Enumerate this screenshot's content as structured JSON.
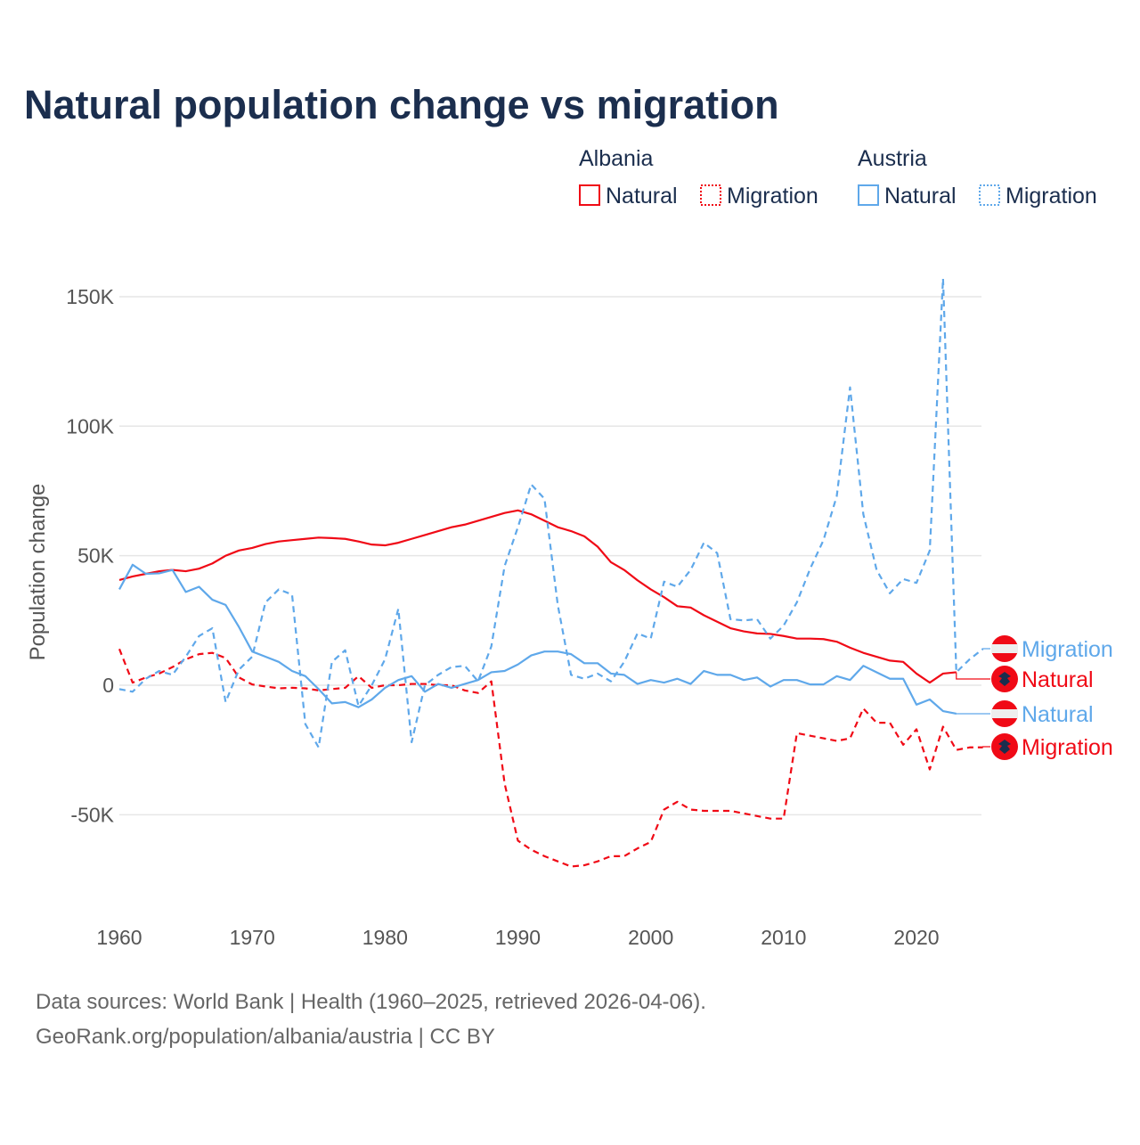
{
  "chart_data": {
    "type": "line",
    "title": "Natural population change vs migration",
    "ylabel": "Population change",
    "xlabel": "",
    "xlim": [
      1960,
      2025
    ],
    "ylim": [
      -80000,
      160000
    ],
    "x_ticks": [
      1960,
      1970,
      1980,
      1990,
      2000,
      2010,
      2020
    ],
    "x_tick_labels": [
      "1960",
      "1970",
      "1980",
      "1990",
      "2000",
      "2010",
      "2020"
    ],
    "y_ticks": [
      -50000,
      0,
      50000,
      100000,
      150000
    ],
    "y_tick_labels": [
      "-50K",
      "0",
      "50K",
      "100K",
      "150K"
    ],
    "grid": true,
    "legend": {
      "placement": "top-right",
      "groups": [
        {
          "name": "Albania",
          "entries": [
            "Natural",
            "Migration"
          ]
        },
        {
          "name": "Austria",
          "entries": [
            "Natural",
            "Migration"
          ]
        }
      ]
    },
    "x_start": 1960,
    "series": [
      {
        "name": "Albania Natural",
        "country": "Albania",
        "kind": "Natural",
        "color": "#f00a16",
        "dash": false,
        "end_label": "Natural",
        "values": [
          40.6,
          42,
          43,
          44,
          44.5,
          44,
          45,
          47,
          50,
          52,
          53,
          54.5,
          55.5,
          56,
          56.5,
          57,
          56.8,
          56.5,
          55.5,
          54.3,
          54,
          55,
          56.5,
          58,
          59.5,
          61,
          62,
          63.5,
          65,
          66.5,
          67.5,
          66,
          63.5,
          61,
          59.5,
          57.5,
          53.5,
          47.5,
          44.5,
          40.5,
          37,
          34,
          30.5,
          30,
          27,
          24.5,
          22,
          20.8,
          20,
          19.8,
          19,
          18,
          18,
          17.8,
          16.8,
          14.5,
          12.5,
          11,
          9.5,
          9,
          4.5,
          1,
          4.5,
          5
        ]
      },
      {
        "name": "Albania Migration",
        "country": "Albania",
        "kind": "Migration",
        "color": "#f00a16",
        "dash": true,
        "end_label": "Migration",
        "values": [
          14,
          1,
          3,
          4.5,
          7,
          10,
          12,
          12.5,
          10.5,
          3,
          0.3,
          -0.5,
          -1.2,
          -1,
          -1.2,
          -2,
          -1.5,
          -1,
          3.5,
          -1,
          0,
          0,
          0.5,
          0.5,
          0,
          0,
          -2,
          -3,
          1.5,
          -38,
          -60,
          -63.5,
          -66,
          -68,
          -70,
          -69.5,
          -68,
          -66,
          -66,
          -63,
          -60.5,
          -48,
          -45,
          -48,
          -48.5,
          -48.5,
          -48.5,
          -49.5,
          -50.5,
          -51.5,
          -51.5,
          -18.5,
          -19.5,
          -20.5,
          -21.5,
          -20.5,
          -9,
          -14.5,
          -14.5,
          -23,
          -17,
          -32.5,
          -16,
          -25,
          -24,
          -24
        ]
      },
      {
        "name": "Austria Natural",
        "country": "Austria",
        "kind": "Natural",
        "color": "#5fa8ea",
        "dash": false,
        "end_label": "Natural",
        "values": [
          37,
          46.5,
          43,
          43.2,
          44.5,
          36,
          38,
          33,
          31,
          22.5,
          13,
          11,
          9,
          5.5,
          3.5,
          -1.5,
          -7,
          -6.5,
          -8.5,
          -5.5,
          -1,
          2,
          3.5,
          -2.5,
          0.5,
          -1,
          0.5,
          2,
          5,
          5.5,
          8,
          11.5,
          13,
          13,
          12,
          8.5,
          8.5,
          4.5,
          4,
          0.5,
          2,
          1,
          2.5,
          0.5,
          5.5,
          4,
          4,
          2,
          3,
          -0.5,
          2,
          2,
          0.3,
          0.3,
          3.5,
          2,
          7.5,
          5,
          2.5,
          2.5,
          -7.5,
          -5.5,
          -10,
          -11
        ]
      },
      {
        "name": "Austria Migration",
        "country": "Austria",
        "kind": "Migration",
        "color": "#5fa8ea",
        "dash": true,
        "end_label": "Migration",
        "values": [
          -1.5,
          -2.5,
          2.5,
          5.5,
          4,
          11,
          19,
          22,
          -6.5,
          6,
          11,
          32,
          37,
          35,
          -15,
          -24,
          9,
          13.5,
          -8,
          0,
          10,
          29.5,
          -22,
          0,
          4,
          7,
          7.5,
          1.5,
          15,
          46,
          61,
          77.5,
          72,
          31,
          4,
          2.5,
          4.5,
          1.5,
          9,
          20,
          18,
          40,
          38,
          44.5,
          55,
          51,
          25.5,
          25,
          25.5,
          18,
          23,
          32,
          45,
          56,
          73,
          115,
          66,
          44.5,
          35.5,
          41,
          39.5,
          52,
          157,
          5,
          10,
          14
        ]
      }
    ],
    "value_unit": "thousands",
    "source": "Data sources: World Bank | Health (1960–2025, retrieved 2026-04-06).",
    "credit": "GeoRank.org/population/albania/austria | CC BY"
  }
}
